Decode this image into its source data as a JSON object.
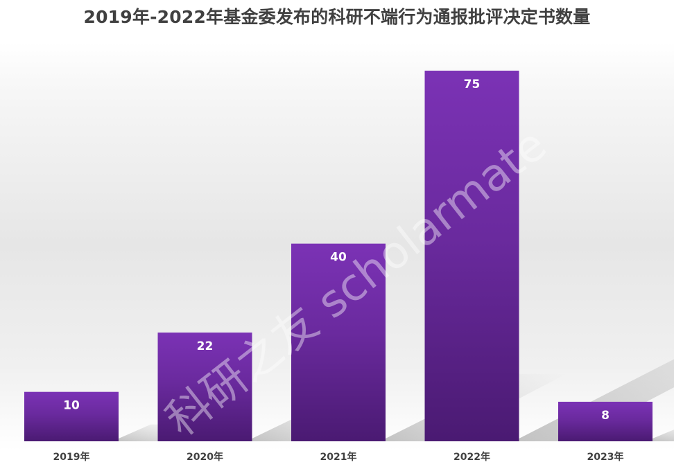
{
  "chart_data": {
    "type": "bar",
    "title": "2019年-2022年基金委发布的科研不端行为通报批评决定书数量",
    "categories": [
      "2019年",
      "2020年",
      "2021年",
      "2022年",
      "2023年"
    ],
    "values": [
      10,
      22,
      40,
      75,
      8
    ],
    "data_labels": [
      "10",
      "22",
      "40",
      "75",
      "8"
    ],
    "xlabel": "",
    "ylabel": "",
    "ylim": [
      0,
      75
    ],
    "grid": false,
    "legend": "none",
    "bar_color": "#6a2a9e",
    "bar_color_top": "#7b32b5",
    "bar_color_bottom": "#4a1a72"
  },
  "watermark": "科研之友 scholarmate"
}
